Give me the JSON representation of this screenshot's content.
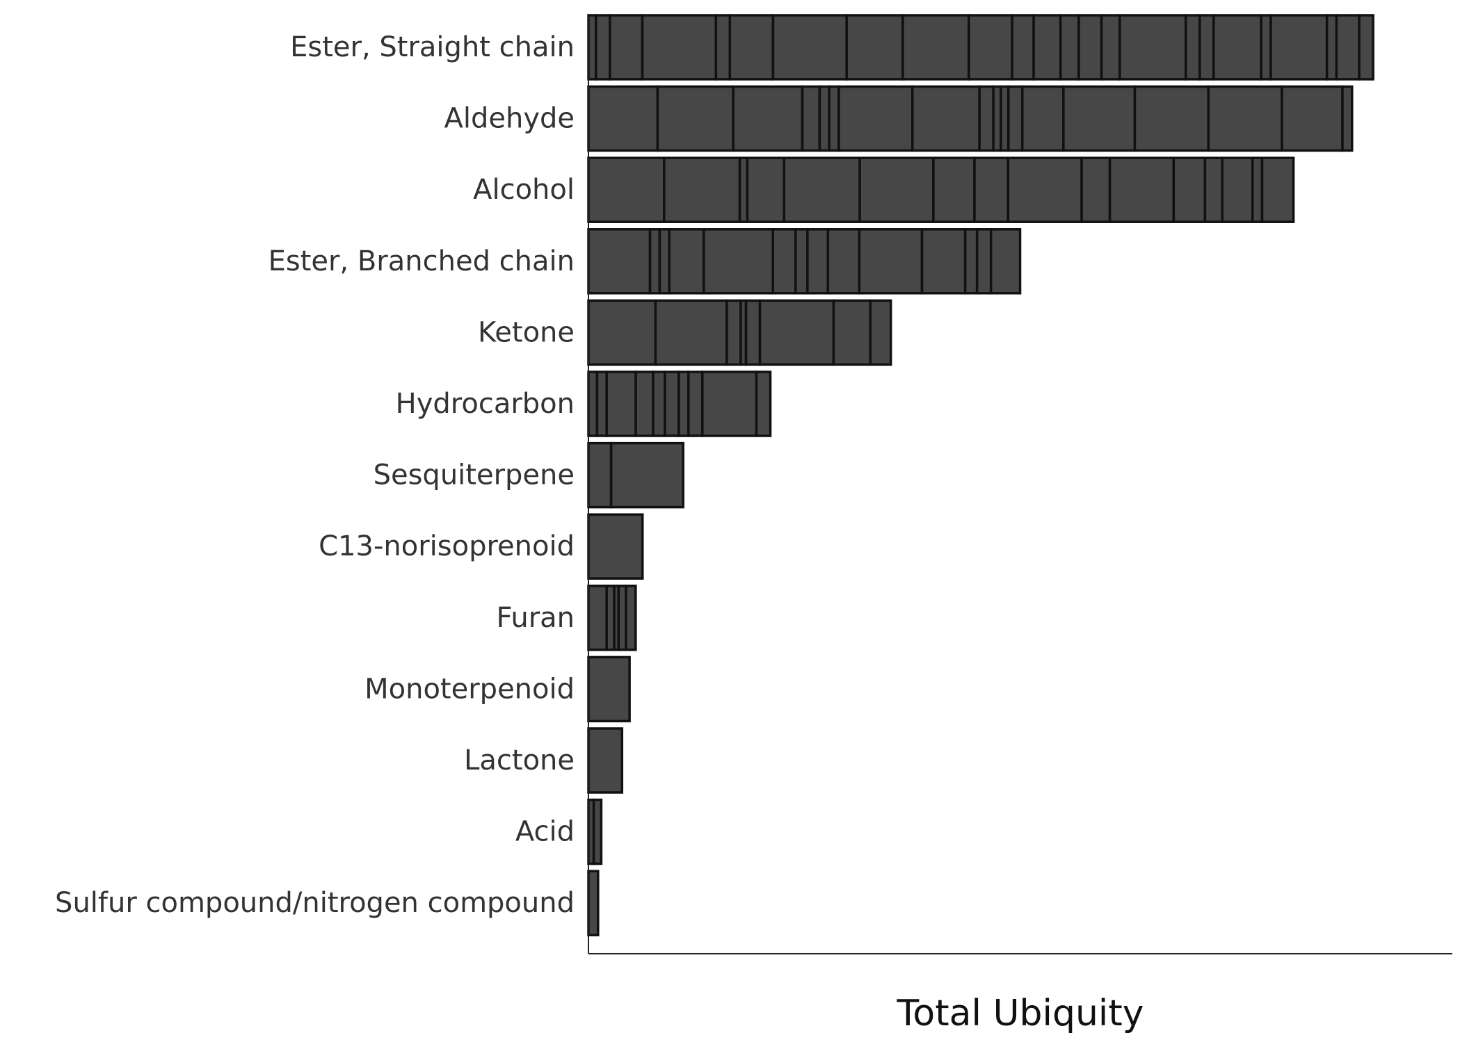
{
  "chart_data": {
    "type": "bar",
    "orientation": "horizontal",
    "stacked": true,
    "xlabel": "Total Ubiquity",
    "ylabel": "",
    "xlim": [
      0,
      54
    ],
    "grid": false,
    "legend": "none",
    "colors": {
      "bar_fill": "#474747",
      "bar_edge": "#111111",
      "axis": "#222222",
      "label_text": "#333333",
      "title_text": "#111111"
    },
    "categories": [
      "Ester, Straight chain",
      "Aldehyde",
      "Alcohol",
      "Ester, Branched chain",
      "Ketone",
      "Hydrocarbon",
      "Sesquiterpene",
      "C13-norisoprenoid",
      "Furan",
      "Monoterpenoid",
      "Lactone",
      "Acid",
      "Sulfur compound/nitrogen compound"
    ],
    "segments": [
      [
        0.47,
        0.87,
        2.03,
        4.6,
        0.87,
        2.7,
        4.6,
        3.51,
        4.13,
        2.7,
        1.35,
        1.68,
        1.14,
        1.42,
        1.14,
        4.13,
        0.87,
        0.87,
        2.97,
        0.6,
        3.51,
        0.6,
        1.42,
        0.87
      ],
      [
        4.32,
        4.73,
        4.32,
        1.08,
        0.6,
        0.6,
        4.6,
        4.19,
        0.87,
        0.47,
        0.47,
        0.87,
        2.57,
        4.46,
        4.6,
        4.6,
        3.78,
        0.6
      ],
      [
        4.73,
        4.73,
        0.47,
        2.3,
        4.73,
        4.6,
        2.57,
        2.1,
        4.6,
        1.76,
        3.99,
        1.96,
        1.08,
        1.89,
        0.6,
        1.96
      ],
      [
        3.85,
        0.6,
        0.6,
        2.16,
        4.32,
        1.42,
        0.74,
        1.28,
        1.96,
        3.92,
        2.7,
        0.74,
        0.87,
        1.82
      ],
      [
        4.19,
        4.46,
        0.87,
        0.33,
        0.87,
        4.6,
        2.3,
        1.28
      ],
      [
        0.54,
        0.6,
        1.82,
        1.08,
        0.74,
        0.87,
        0.6,
        0.87,
        3.38,
        0.87
      ],
      [
        1.42,
        4.5
      ],
      [
        3.38
      ],
      [
        1.14,
        0.47,
        0.27,
        0.47,
        0.6
      ],
      [
        2.57
      ],
      [
        2.1
      ],
      [
        0.33,
        0.47
      ],
      [
        0.6
      ]
    ]
  }
}
